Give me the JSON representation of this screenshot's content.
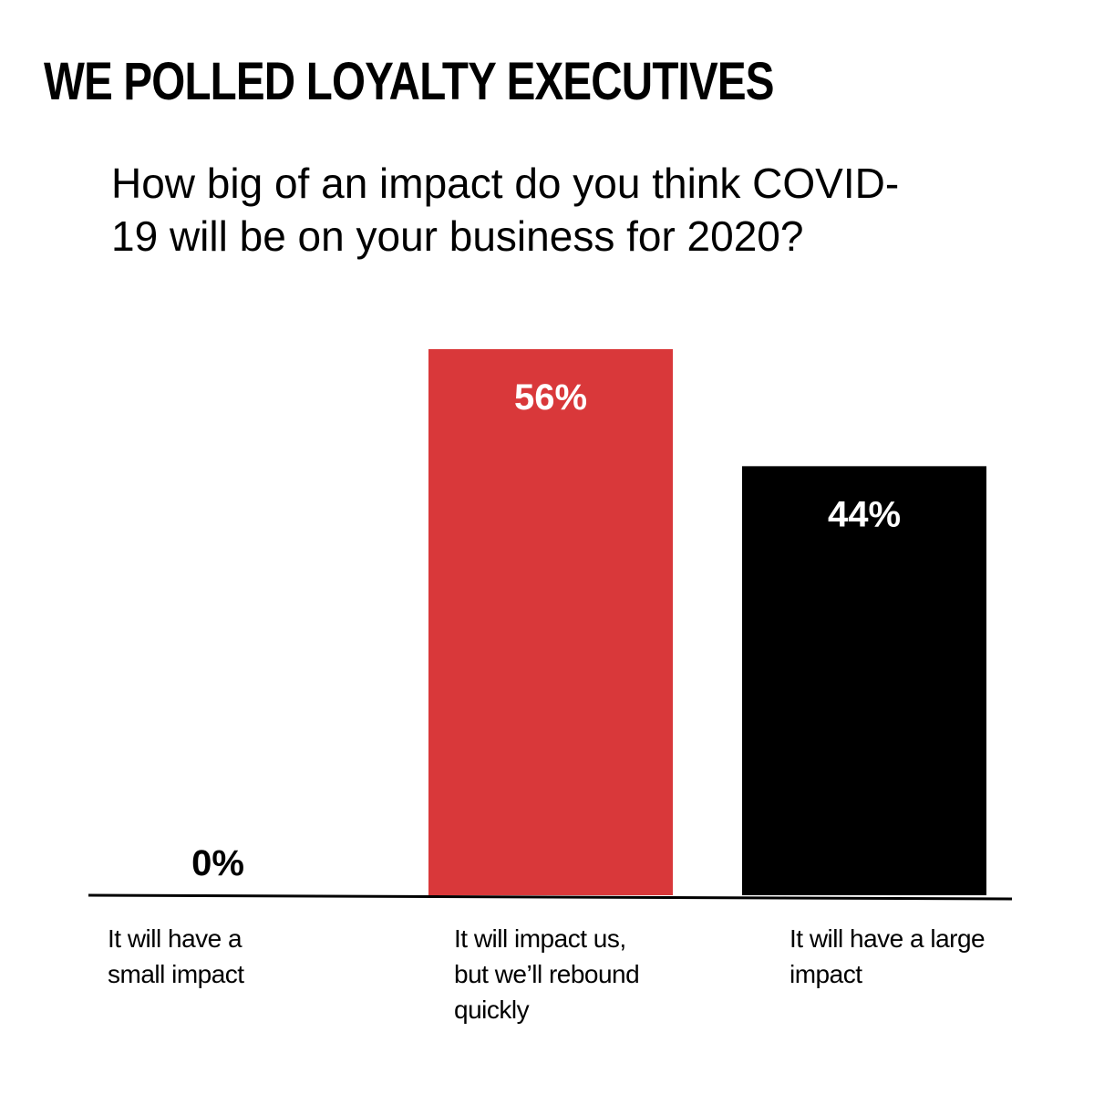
{
  "header": {
    "title": "WE POLLED LOYALTY EXECUTIVES",
    "question": "How big of an impact do you think COVID-19 will be on your business for 2020?"
  },
  "chart_data": {
    "type": "bar",
    "title": "WE POLLED LOYALTY EXECUTIVES",
    "subtitle": "How big of an impact do you think COVID-19 will be on your business for 2020?",
    "categories": [
      "It will have a small impact",
      "It will impact us, but we’ll rebound quickly",
      "It will have a large impact"
    ],
    "category_lines": [
      [
        "It will have a",
        "small impact"
      ],
      [
        "It will impact us,",
        "but we’ll rebound",
        "quickly"
      ],
      [
        "It will have a large",
        "impact"
      ]
    ],
    "values": [
      0,
      56,
      44
    ],
    "value_labels": [
      "0%",
      "56%",
      "44%"
    ],
    "unit": "%",
    "ylim": [
      0,
      56
    ],
    "xlabel": "",
    "ylabel": "",
    "grid": false,
    "legend": "none",
    "colors": [
      "#d9383a",
      "#d9383a",
      "#000000"
    ],
    "label_colors": [
      "#000000",
      "#ffffff",
      "#ffffff"
    ]
  }
}
